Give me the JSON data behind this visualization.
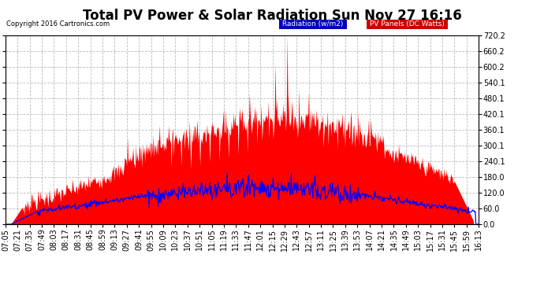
{
  "title": "Total PV Power & Solar Radiation Sun Nov 27 16:16",
  "copyright": "Copyright 2016 Cartronics.com",
  "legend_radiation": "Radiation (w/m2)",
  "legend_pv": "PV Panels (DC Watts)",
  "legend_radiation_bg": "#0000bb",
  "legend_pv_bg": "#cc0000",
  "legend_radiation_fg": "#ffffff",
  "legend_pv_fg": "#ffffff",
  "ymin": 0.0,
  "ymax": 720.2,
  "yticks": [
    0.0,
    60.0,
    120.0,
    180.0,
    240.1,
    300.1,
    360.1,
    420.1,
    480.1,
    540.1,
    600.2,
    660.2,
    720.2
  ],
  "background_color": "#ffffff",
  "plot_bg_color": "#ffffff",
  "grid_color": "#bbbbbb",
  "pv_color": "#ff0000",
  "radiation_color": "#0000ff",
  "title_fontsize": 12,
  "tick_fontsize": 7,
  "num_points": 680,
  "x_labels": [
    "07:05",
    "07:21",
    "07:35",
    "07:49",
    "08:03",
    "08:17",
    "08:31",
    "08:45",
    "08:59",
    "09:13",
    "09:27",
    "09:41",
    "09:55",
    "10:09",
    "10:23",
    "10:37",
    "10:51",
    "11:05",
    "11:19",
    "11:33",
    "11:47",
    "12:01",
    "12:15",
    "12:29",
    "12:43",
    "12:57",
    "13:11",
    "13:25",
    "13:39",
    "13:53",
    "14:07",
    "14:21",
    "14:35",
    "14:49",
    "15:03",
    "15:17",
    "15:31",
    "15:45",
    "15:59",
    "16:13"
  ]
}
